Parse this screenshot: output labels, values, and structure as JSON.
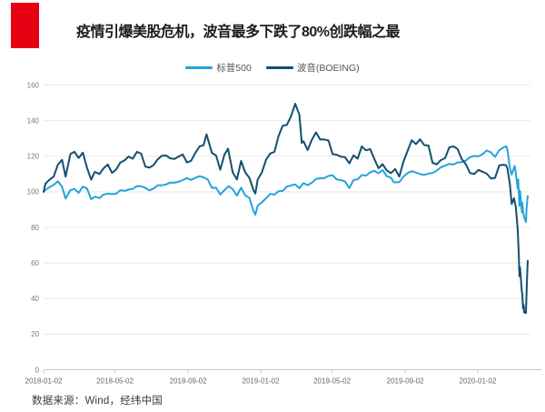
{
  "header": {
    "title": "疫情引爆美股危机，波音最多下跌了80%创跌幅之最",
    "accent_color": "#e60012"
  },
  "source_note": "数据来源：Wind，经纬中国",
  "chart_data": {
    "type": "line",
    "title": "疫情引爆美股危机，波音最多下跌了80%创跌幅之最",
    "xlabel": "",
    "ylabel": "",
    "ylim": [
      0,
      160
    ],
    "y_ticks": [
      0,
      20,
      40,
      60,
      80,
      100,
      120,
      140,
      160
    ],
    "x_ticks": [
      "2018-01-02",
      "2018-05-02",
      "2018-09-02",
      "2019-01-02",
      "2019-05-02",
      "2019-09-02",
      "2020-01-02"
    ],
    "x_range": [
      "2018-01-02",
      "2020-03-27"
    ],
    "grid": true,
    "legend_position": "top",
    "axis_label_color": "#777777",
    "grid_color": "#e9e9e9",
    "series": [
      {
        "name": "标普500",
        "color": "#24a3dc",
        "points": [
          [
            "2018-01-02",
            100.0
          ],
          [
            "2018-01-05",
            101.0
          ],
          [
            "2018-01-12",
            102.6
          ],
          [
            "2018-01-19",
            103.8
          ],
          [
            "2018-01-26",
            105.9
          ],
          [
            "2018-02-02",
            102.9
          ],
          [
            "2018-02-08",
            96.2
          ],
          [
            "2018-02-16",
            100.9
          ],
          [
            "2018-02-23",
            101.6
          ],
          [
            "2018-03-02",
            99.4
          ],
          [
            "2018-03-09",
            102.9
          ],
          [
            "2018-03-16",
            101.8
          ],
          [
            "2018-03-23",
            95.8
          ],
          [
            "2018-03-29",
            97.3
          ],
          [
            "2018-04-06",
            96.4
          ],
          [
            "2018-04-13",
            98.5
          ],
          [
            "2018-04-20",
            98.9
          ],
          [
            "2018-04-27",
            98.7
          ],
          [
            "2018-05-04",
            98.9
          ],
          [
            "2018-05-11",
            100.9
          ],
          [
            "2018-05-18",
            100.5
          ],
          [
            "2018-05-25",
            101.2
          ],
          [
            "2018-06-01",
            101.6
          ],
          [
            "2018-06-08",
            103.2
          ],
          [
            "2018-06-15",
            103.1
          ],
          [
            "2018-06-22",
            102.2
          ],
          [
            "2018-06-29",
            100.8
          ],
          [
            "2018-07-06",
            101.8
          ],
          [
            "2018-07-13",
            103.6
          ],
          [
            "2018-07-20",
            103.6
          ],
          [
            "2018-07-27",
            104.2
          ],
          [
            "2018-08-03",
            105.2
          ],
          [
            "2018-08-10",
            105.1
          ],
          [
            "2018-08-17",
            105.6
          ],
          [
            "2018-08-24",
            106.6
          ],
          [
            "2018-08-31",
            107.7
          ],
          [
            "2018-09-07",
            106.7
          ],
          [
            "2018-09-14",
            107.8
          ],
          [
            "2018-09-21",
            108.8
          ],
          [
            "2018-09-28",
            108.1
          ],
          [
            "2018-10-05",
            106.9
          ],
          [
            "2018-10-12",
            102.2
          ],
          [
            "2018-10-19",
            102.3
          ],
          [
            "2018-10-26",
            98.5
          ],
          [
            "2018-11-02",
            100.9
          ],
          [
            "2018-11-09",
            103.1
          ],
          [
            "2018-11-16",
            101.5
          ],
          [
            "2018-11-23",
            97.9
          ],
          [
            "2018-11-30",
            102.3
          ],
          [
            "2018-12-07",
            98.0
          ],
          [
            "2018-12-14",
            96.5
          ],
          [
            "2018-12-21",
            89.1
          ],
          [
            "2018-12-24",
            87.1
          ],
          [
            "2018-12-28",
            92.2
          ],
          [
            "2019-01-04",
            94.1
          ],
          [
            "2019-01-11",
            96.3
          ],
          [
            "2019-01-18",
            98.8
          ],
          [
            "2019-01-25",
            98.4
          ],
          [
            "2019-02-01",
            100.3
          ],
          [
            "2019-02-08",
            100.5
          ],
          [
            "2019-02-15",
            102.9
          ],
          [
            "2019-02-22",
            103.5
          ],
          [
            "2019-03-01",
            104.2
          ],
          [
            "2019-03-08",
            102.0
          ],
          [
            "2019-03-15",
            104.9
          ],
          [
            "2019-03-22",
            103.7
          ],
          [
            "2019-03-29",
            105.1
          ],
          [
            "2019-04-05",
            107.2
          ],
          [
            "2019-04-12",
            107.6
          ],
          [
            "2019-04-18",
            107.6
          ],
          [
            "2019-04-26",
            108.9
          ],
          [
            "2019-05-03",
            109.3
          ],
          [
            "2019-05-10",
            106.9
          ],
          [
            "2019-05-17",
            106.6
          ],
          [
            "2019-05-24",
            105.7
          ],
          [
            "2019-05-31",
            102.1
          ],
          [
            "2019-06-07",
            106.6
          ],
          [
            "2019-06-14",
            107.0
          ],
          [
            "2019-06-21",
            109.4
          ],
          [
            "2019-06-28",
            109.1
          ],
          [
            "2019-07-05",
            110.9
          ],
          [
            "2019-07-12",
            111.8
          ],
          [
            "2019-07-19",
            110.4
          ],
          [
            "2019-07-26",
            112.2
          ],
          [
            "2019-08-02",
            108.8
          ],
          [
            "2019-08-09",
            107.9
          ],
          [
            "2019-08-14",
            105.3
          ],
          [
            "2019-08-23",
            105.4
          ],
          [
            "2019-08-30",
            108.5
          ],
          [
            "2019-09-06",
            110.5
          ],
          [
            "2019-09-13",
            111.6
          ],
          [
            "2019-09-20",
            110.8
          ],
          [
            "2019-09-27",
            109.9
          ],
          [
            "2019-10-04",
            109.5
          ],
          [
            "2019-10-11",
            110.2
          ],
          [
            "2019-10-18",
            110.6
          ],
          [
            "2019-10-25",
            111.9
          ],
          [
            "2019-11-01",
            113.8
          ],
          [
            "2019-11-08",
            114.7
          ],
          [
            "2019-11-15",
            115.7
          ],
          [
            "2019-11-22",
            115.3
          ],
          [
            "2019-11-29",
            116.5
          ],
          [
            "2019-12-06",
            116.7
          ],
          [
            "2019-12-13",
            117.5
          ],
          [
            "2019-12-20",
            119.5
          ],
          [
            "2019-12-27",
            120.2
          ],
          [
            "2020-01-03",
            119.9
          ],
          [
            "2020-01-10",
            121.1
          ],
          [
            "2020-01-17",
            123.2
          ],
          [
            "2020-01-24",
            122.2
          ],
          [
            "2020-01-31",
            119.6
          ],
          [
            "2020-02-07",
            123.4
          ],
          [
            "2020-02-14",
            124.9
          ],
          [
            "2020-02-19",
            125.6
          ],
          [
            "2020-02-21",
            123.5
          ],
          [
            "2020-02-25",
            113.3
          ],
          [
            "2020-02-28",
            109.6
          ],
          [
            "2020-03-04",
            114.5
          ],
          [
            "2020-03-06",
            110.2
          ],
          [
            "2020-03-09",
            101.9
          ],
          [
            "2020-03-10",
            106.9
          ],
          [
            "2020-03-12",
            92.0
          ],
          [
            "2020-03-13",
            100.6
          ],
          [
            "2020-03-16",
            88.5
          ],
          [
            "2020-03-17",
            93.8
          ],
          [
            "2020-03-18",
            89.0
          ],
          [
            "2020-03-20",
            85.5
          ],
          [
            "2020-03-23",
            83.0
          ],
          [
            "2020-03-24",
            90.8
          ],
          [
            "2020-03-26",
            97.6
          ]
        ]
      },
      {
        "name": "波音(BOEING)",
        "color": "#134f70",
        "points": [
          [
            "2018-01-02",
            100.0
          ],
          [
            "2018-01-05",
            104.5
          ],
          [
            "2018-01-12",
            106.8
          ],
          [
            "2018-01-19",
            108.5
          ],
          [
            "2018-01-26",
            115.2
          ],
          [
            "2018-02-02",
            118.0
          ],
          [
            "2018-02-08",
            108.5
          ],
          [
            "2018-02-16",
            121.2
          ],
          [
            "2018-02-23",
            122.5
          ],
          [
            "2018-03-02",
            119.0
          ],
          [
            "2018-03-09",
            122.0
          ],
          [
            "2018-03-16",
            113.5
          ],
          [
            "2018-03-23",
            106.8
          ],
          [
            "2018-03-29",
            111.2
          ],
          [
            "2018-04-06",
            110.0
          ],
          [
            "2018-04-13",
            113.2
          ],
          [
            "2018-04-20",
            115.3
          ],
          [
            "2018-04-27",
            110.6
          ],
          [
            "2018-05-04",
            112.5
          ],
          [
            "2018-05-11",
            116.5
          ],
          [
            "2018-05-18",
            117.6
          ],
          [
            "2018-05-25",
            119.8
          ],
          [
            "2018-06-01",
            118.6
          ],
          [
            "2018-06-08",
            122.5
          ],
          [
            "2018-06-15",
            121.4
          ],
          [
            "2018-06-22",
            114.2
          ],
          [
            "2018-06-29",
            113.6
          ],
          [
            "2018-07-06",
            115.0
          ],
          [
            "2018-07-13",
            118.3
          ],
          [
            "2018-07-20",
            120.3
          ],
          [
            "2018-07-27",
            120.4
          ],
          [
            "2018-08-03",
            118.8
          ],
          [
            "2018-08-10",
            118.5
          ],
          [
            "2018-08-17",
            119.8
          ],
          [
            "2018-08-24",
            121.0
          ],
          [
            "2018-08-31",
            116.5
          ],
          [
            "2018-09-07",
            117.4
          ],
          [
            "2018-09-14",
            121.8
          ],
          [
            "2018-09-21",
            125.5
          ],
          [
            "2018-09-28",
            126.2
          ],
          [
            "2018-10-03",
            132.3
          ],
          [
            "2018-10-12",
            121.8
          ],
          [
            "2018-10-19",
            120.4
          ],
          [
            "2018-10-26",
            112.4
          ],
          [
            "2018-11-02",
            120.9
          ],
          [
            "2018-11-08",
            124.2
          ],
          [
            "2018-11-16",
            110.9
          ],
          [
            "2018-11-23",
            106.9
          ],
          [
            "2018-11-30",
            117.3
          ],
          [
            "2018-12-07",
            110.9
          ],
          [
            "2018-12-14",
            107.8
          ],
          [
            "2018-12-21",
            100.8
          ],
          [
            "2018-12-24",
            99.0
          ],
          [
            "2018-12-28",
            106.9
          ],
          [
            "2019-01-04",
            110.9
          ],
          [
            "2019-01-11",
            118.0
          ],
          [
            "2019-01-18",
            121.5
          ],
          [
            "2019-01-25",
            122.4
          ],
          [
            "2019-02-01",
            131.2
          ],
          [
            "2019-02-08",
            137.1
          ],
          [
            "2019-02-15",
            137.6
          ],
          [
            "2019-02-22",
            142.4
          ],
          [
            "2019-03-01",
            149.5
          ],
          [
            "2019-03-08",
            143.3
          ],
          [
            "2019-03-12",
            127.5
          ],
          [
            "2019-03-15",
            128.4
          ],
          [
            "2019-03-22",
            123.5
          ],
          [
            "2019-03-29",
            129.2
          ],
          [
            "2019-04-05",
            133.4
          ],
          [
            "2019-04-12",
            129.4
          ],
          [
            "2019-04-18",
            129.5
          ],
          [
            "2019-04-26",
            128.8
          ],
          [
            "2019-05-03",
            121.2
          ],
          [
            "2019-05-10",
            120.8
          ],
          [
            "2019-05-17",
            119.7
          ],
          [
            "2019-05-24",
            119.4
          ],
          [
            "2019-05-31",
            116.0
          ],
          [
            "2019-06-07",
            120.5
          ],
          [
            "2019-06-14",
            118.6
          ],
          [
            "2019-06-21",
            125.5
          ],
          [
            "2019-06-28",
            123.3
          ],
          [
            "2019-07-05",
            124.0
          ],
          [
            "2019-07-12",
            118.5
          ],
          [
            "2019-07-19",
            113.2
          ],
          [
            "2019-07-26",
            115.5
          ],
          [
            "2019-08-02",
            112.0
          ],
          [
            "2019-08-09",
            110.5
          ],
          [
            "2019-08-16",
            112.8
          ],
          [
            "2019-08-23",
            108.5
          ],
          [
            "2019-08-30",
            117.0
          ],
          [
            "2019-09-06",
            123.0
          ],
          [
            "2019-09-13",
            128.9
          ],
          [
            "2019-09-20",
            126.8
          ],
          [
            "2019-09-27",
            129.5
          ],
          [
            "2019-10-04",
            126.2
          ],
          [
            "2019-10-11",
            126.0
          ],
          [
            "2019-10-18",
            116.3
          ],
          [
            "2019-10-25",
            115.4
          ],
          [
            "2019-11-01",
            117.8
          ],
          [
            "2019-11-08",
            118.9
          ],
          [
            "2019-11-15",
            125.0
          ],
          [
            "2019-11-22",
            125.5
          ],
          [
            "2019-11-29",
            124.1
          ],
          [
            "2019-12-06",
            118.4
          ],
          [
            "2019-12-13",
            115.4
          ],
          [
            "2019-12-20",
            110.5
          ],
          [
            "2019-12-27",
            110.0
          ],
          [
            "2020-01-03",
            112.3
          ],
          [
            "2020-01-10",
            111.3
          ],
          [
            "2020-01-17",
            110.2
          ],
          [
            "2020-01-24",
            107.5
          ],
          [
            "2020-01-31",
            107.8
          ],
          [
            "2020-02-07",
            114.8
          ],
          [
            "2020-02-14",
            115.2
          ],
          [
            "2020-02-19",
            114.8
          ],
          [
            "2020-02-21",
            112.9
          ],
          [
            "2020-02-25",
            104.2
          ],
          [
            "2020-02-28",
            93.2
          ],
          [
            "2020-03-03",
            96.4
          ],
          [
            "2020-03-06",
            91.3
          ],
          [
            "2020-03-09",
            79.3
          ],
          [
            "2020-03-11",
            64.1
          ],
          [
            "2020-03-12",
            52.5
          ],
          [
            "2020-03-13",
            57.6
          ],
          [
            "2020-03-16",
            43.9
          ],
          [
            "2020-03-17",
            42.1
          ],
          [
            "2020-03-18",
            34.5
          ],
          [
            "2020-03-19",
            36.5
          ],
          [
            "2020-03-20",
            32.2
          ],
          [
            "2020-03-23",
            31.9
          ],
          [
            "2020-03-24",
            43.2
          ],
          [
            "2020-03-25",
            53.8
          ],
          [
            "2020-03-26",
            61.2
          ]
        ]
      }
    ]
  }
}
